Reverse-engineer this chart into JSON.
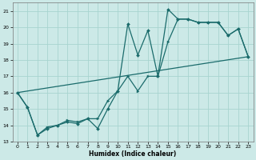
{
  "xlabel": "Humidex (Indice chaleur)",
  "ylabel": "",
  "xlim": [
    -0.5,
    23.5
  ],
  "ylim": [
    13,
    21.5
  ],
  "yticks": [
    13,
    14,
    15,
    16,
    17,
    18,
    19,
    20,
    21
  ],
  "xticks": [
    0,
    1,
    2,
    3,
    4,
    5,
    6,
    7,
    8,
    9,
    10,
    11,
    12,
    13,
    14,
    15,
    16,
    17,
    18,
    19,
    20,
    21,
    22,
    23
  ],
  "bg_color": "#cce9e7",
  "grid_color": "#a8d4d0",
  "line_color": "#1a6b6b",
  "line1_y": [
    16.0,
    15.1,
    13.4,
    13.8,
    14.0,
    14.2,
    14.1,
    14.4,
    13.8,
    15.0,
    16.1,
    20.2,
    18.3,
    19.8,
    17.0,
    21.1,
    20.5,
    20.5,
    20.3,
    20.3,
    20.3,
    19.5,
    19.9,
    18.2
  ],
  "line2_y": [
    16.0,
    15.1,
    13.4,
    13.9,
    14.0,
    14.3,
    14.2,
    14.4,
    14.4,
    15.5,
    16.1,
    17.0,
    16.1,
    17.0,
    17.0,
    19.1,
    20.5,
    20.5,
    20.3,
    20.3,
    20.3,
    19.5,
    19.9,
    18.2
  ],
  "line3_x": [
    0,
    23
  ],
  "line3_y": [
    16.0,
    18.2
  ]
}
